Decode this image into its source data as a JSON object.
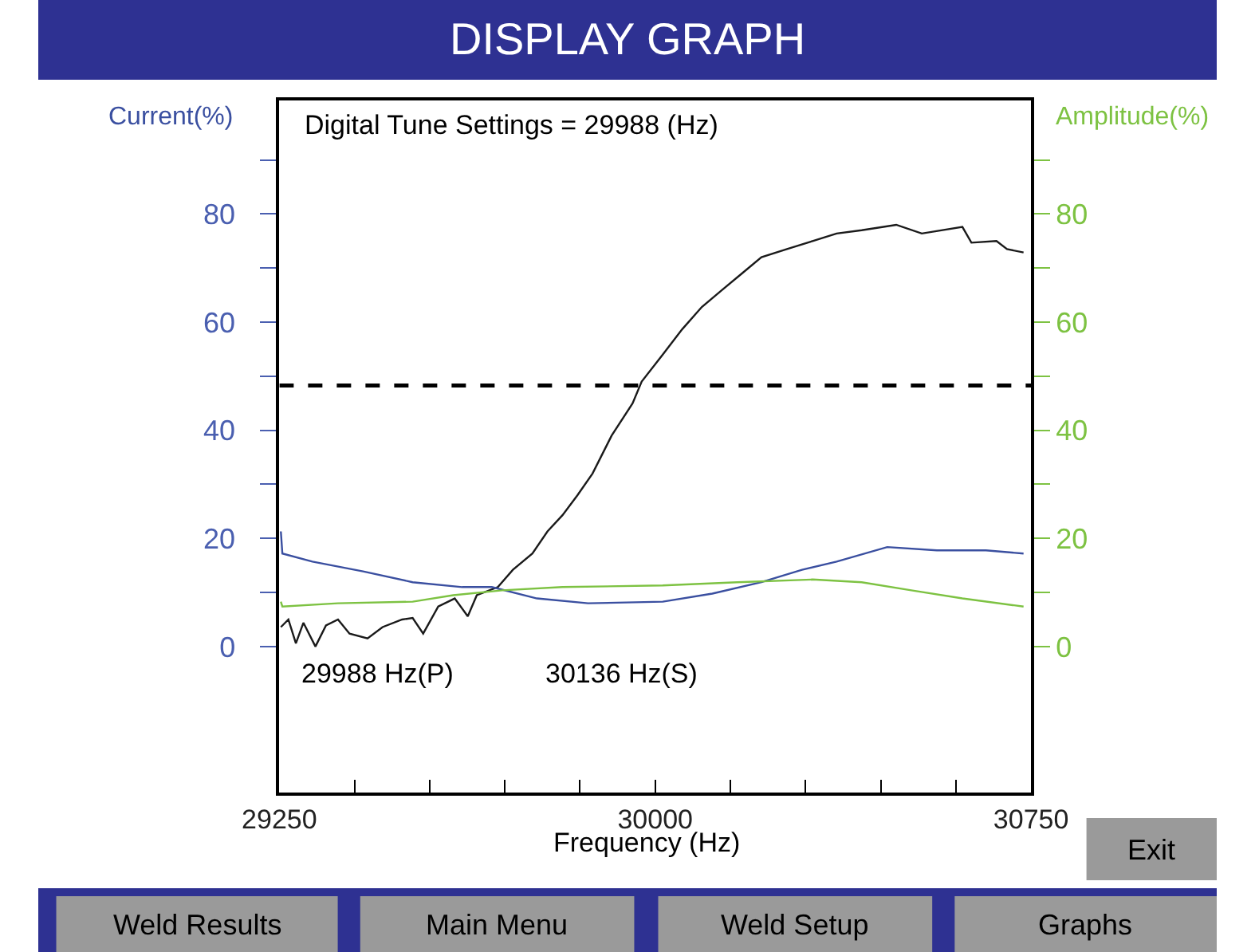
{
  "chart_data": {
    "type": "line",
    "title": "DISPLAY GRAPH",
    "xlabel": "Frequency (Hz)",
    "ylabel": "Current(%)",
    "y2label": "Amplitude(%)",
    "xlim": [
      29250,
      30750
    ],
    "xticks": [
      29250,
      {
        "value": 29400,
        "label": null
      },
      {
        "value": 29550,
        "label": null
      },
      {
        "value": 29700,
        "label": null
      },
      {
        "value": 29850,
        "label": null
      },
      30000,
      {
        "value": 30150,
        "label": null
      },
      {
        "value": 30300,
        "label": null
      },
      {
        "value": 30450,
        "label": null
      },
      {
        "value": 30600,
        "label": null
      },
      30750
    ],
    "ylim": [
      -27,
      101
    ],
    "yticks": [
      0,
      {
        "value": 10,
        "label": null
      },
      20,
      {
        "value": 30,
        "label": null
      },
      40,
      {
        "value": 50,
        "label": null
      },
      60,
      {
        "value": 70,
        "label": null
      },
      80,
      {
        "value": 90,
        "label": null
      }
    ],
    "y2lim": [
      -27,
      101
    ],
    "y2ticks": [
      0,
      {
        "value": 10,
        "label": null
      },
      20,
      {
        "value": 30,
        "label": null
      },
      40,
      {
        "value": 50,
        "label": null
      },
      60,
      {
        "value": 70,
        "label": null
      },
      80,
      {
        "value": 90,
        "label": null
      }
    ],
    "series": [
      {
        "color": "#1a1a1a",
        "x": [
          29253,
          29268,
          29283,
          29298,
          29322,
          29343,
          29367,
          29390,
          29426,
          29456,
          29495,
          29516,
          29537,
          29567,
          29600,
          29626,
          29644,
          29686,
          29716,
          29755,
          29785,
          29815,
          29845,
          29875,
          29913,
          29955,
          29973,
          30015,
          30054,
          30093,
          30134,
          30173,
          30212,
          30263,
          30314,
          30362,
          30412,
          30481,
          30532,
          30613,
          30631,
          30681,
          30702,
          30735
        ],
        "values": [
          3.6,
          5.0,
          0.6,
          4.4,
          0.0,
          3.9,
          5.0,
          2.4,
          1.5,
          3.6,
          5.0,
          5.3,
          2.4,
          7.4,
          8.9,
          5.6,
          9.5,
          11.0,
          14.2,
          17.2,
          21.3,
          24.3,
          28.0,
          32.0,
          39.0,
          45.0,
          49.0,
          54.0,
          58.7,
          62.8,
          66.0,
          69.0,
          72.0,
          73.5,
          75.0,
          76.4,
          77.0,
          78.0,
          76.4,
          77.6,
          74.7,
          75.0,
          73.5,
          72.9
        ]
      },
      {
        "color": "#3a4fa0",
        "x": [
          29253,
          29256,
          29316,
          29417,
          29516,
          29615,
          29674,
          29764,
          29866,
          30015,
          30114,
          30212,
          30293,
          30362,
          30463,
          30562,
          30660,
          30735
        ],
        "values": [
          21.3,
          17.2,
          15.7,
          13.9,
          11.9,
          11.0,
          11.0,
          8.9,
          8.0,
          8.3,
          9.8,
          11.9,
          14.2,
          15.7,
          18.4,
          17.8,
          17.8,
          17.2
        ]
      },
      {
        "color": "#7dc242",
        "axis": "y2",
        "x": [
          29253,
          29256,
          29367,
          29516,
          29597,
          29695,
          29815,
          30015,
          30164,
          30314,
          30412,
          30511,
          30613,
          30735
        ],
        "values": [
          8.3,
          7.4,
          8.0,
          8.3,
          9.5,
          10.4,
          11.0,
          11.3,
          11.9,
          12.4,
          11.9,
          10.4,
          8.9,
          7.4
        ]
      }
    ],
    "ref_lines": [
      {
        "axis": "y",
        "value": 48.3,
        "color": "#000000",
        "line_style": "dashed"
      }
    ],
    "annotations": [
      "Digital Tune Settings = 29988 (Hz)",
      "29988 Hz(P)",
      "30136 Hz(S)",
      "Exit",
      "Weld Results",
      "Main Menu",
      "Weld Setup",
      "Graphs"
    ],
    "line_style": "solid",
    "marker": "none"
  }
}
